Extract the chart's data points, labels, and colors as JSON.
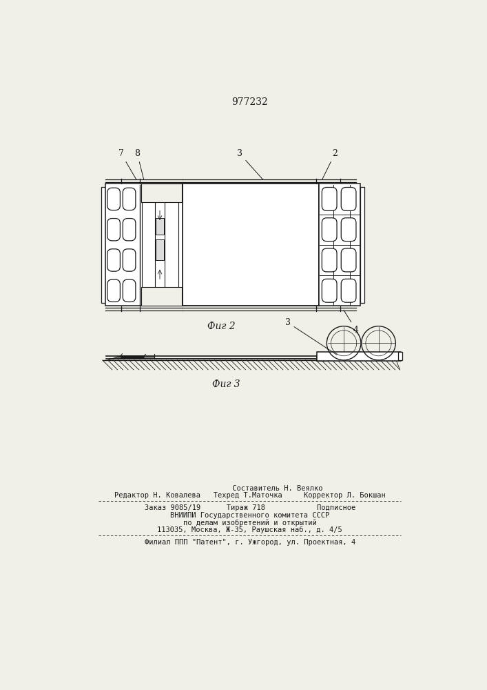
{
  "patent_number": "977232",
  "fig2_label": "Фиг 2",
  "fig3_label": "Фиг 3",
  "bg_color": "#f0efe8",
  "line_color": "#1a1a1a",
  "footer_line1": "             Составитель Н. Веялко",
  "footer_line2": "Редактор Н. Ковалева   Техред Т.Маточка     Корректор Л. Бокшан",
  "footer_line3": "Заказ 9085/19      Тираж 718            Подписное",
  "footer_line4": "ВНИИПИ Государственного комитета СССР",
  "footer_line5": "по делам изобретений и открытий",
  "footer_line6": "113035, Москва, Ж-35, Раушская наб., д. 4/5",
  "footer_line7": "Филиал ППП \"Патент\", г. Ужгород, ул. Проектная, 4"
}
